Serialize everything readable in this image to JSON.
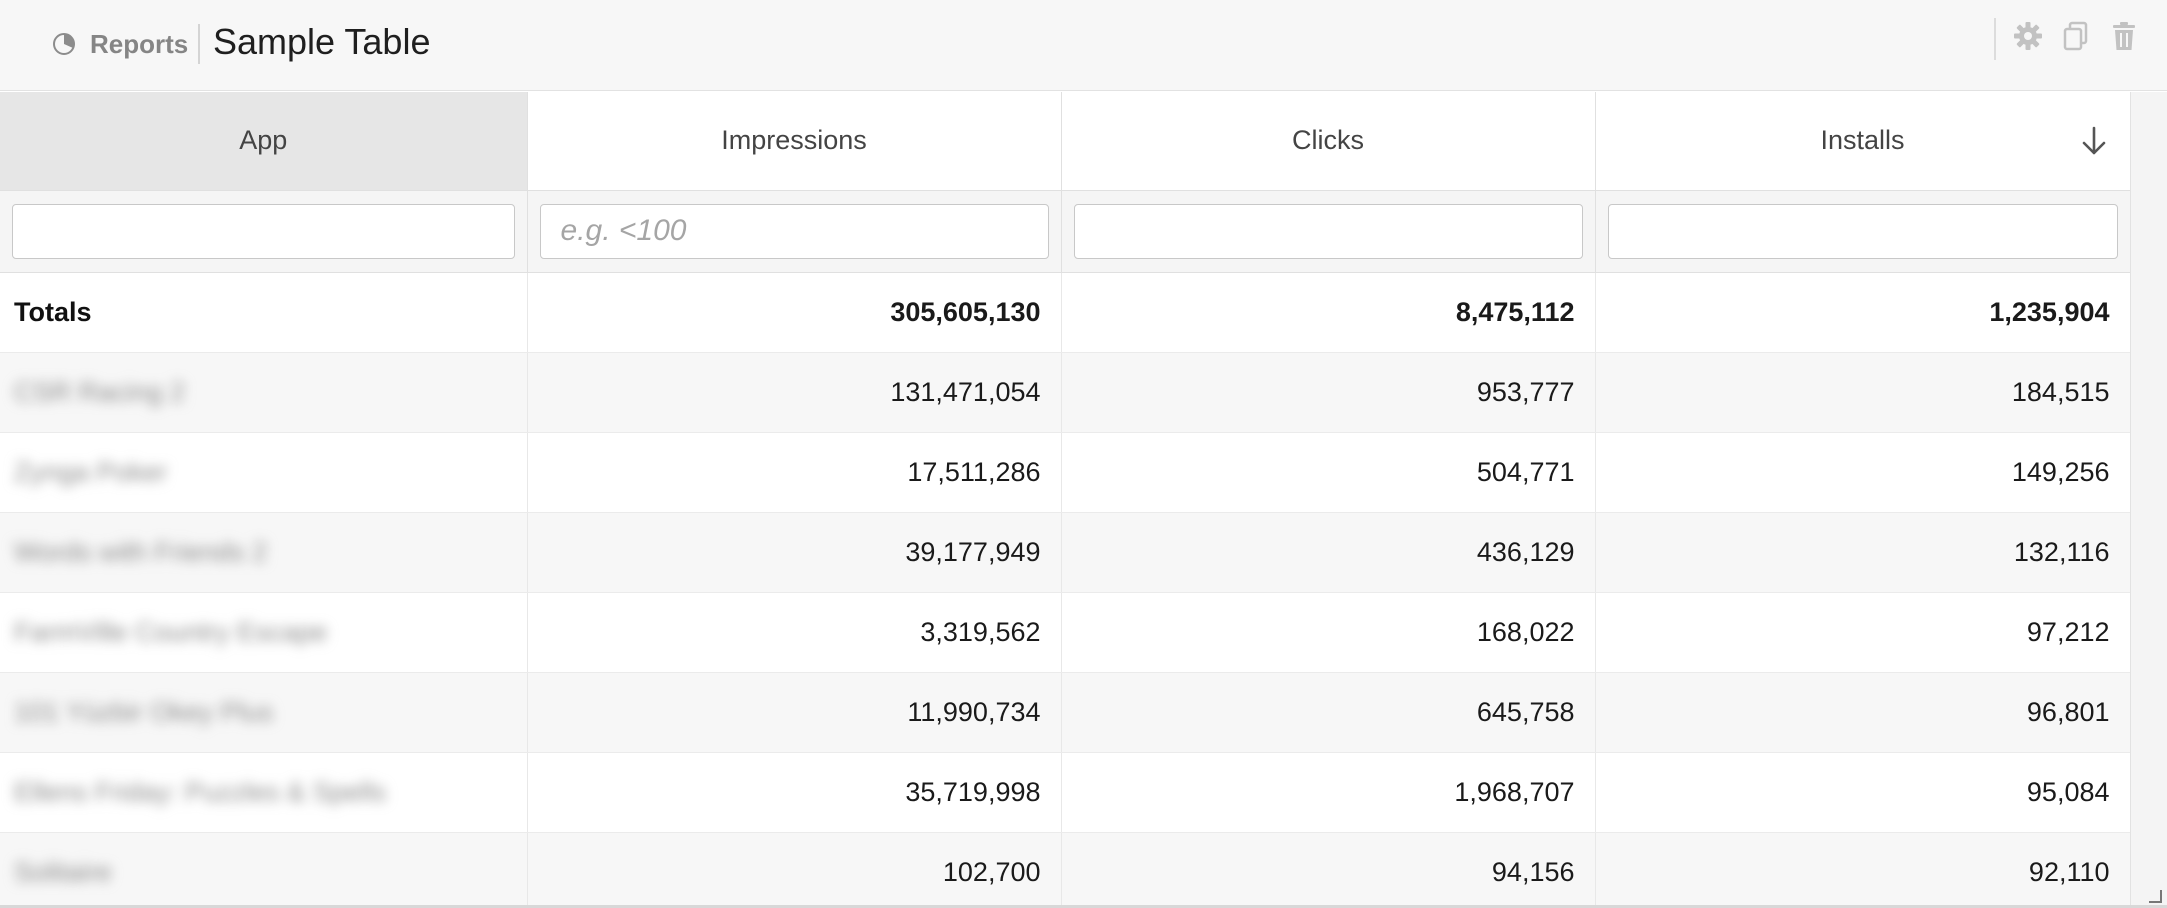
{
  "header": {
    "breadcrumb_label": "Reports",
    "title": "Sample Table",
    "icons": {
      "reports": "pie-chart-icon",
      "settings": "gear-icon",
      "copy": "copy-icon",
      "delete": "trash-icon"
    }
  },
  "table": {
    "columns": [
      {
        "label": "App",
        "filter_placeholder": ""
      },
      {
        "label": "Impressions",
        "filter_placeholder": "e.g. <100"
      },
      {
        "label": "Clicks",
        "filter_placeholder": ""
      },
      {
        "label": "Installs",
        "filter_placeholder": ""
      }
    ],
    "sort": {
      "column": "Installs",
      "direction": "desc",
      "icon": "arrow-down-icon"
    },
    "totals": {
      "label": "Totals",
      "impressions": "305,605,130",
      "clicks": "8,475,112",
      "installs": "1,235,904"
    },
    "rows": [
      {
        "app": "CSR Racing 2",
        "impressions": "131,471,054",
        "clicks": "953,777",
        "installs": "184,515"
      },
      {
        "app": "Zynga Poker",
        "impressions": "17,511,286",
        "clicks": "504,771",
        "installs": "149,256"
      },
      {
        "app": "Words with Friends 2",
        "impressions": "39,177,949",
        "clicks": "436,129",
        "installs": "132,116"
      },
      {
        "app": "FarmVille Country Escape",
        "impressions": "3,319,562",
        "clicks": "168,022",
        "installs": "97,212"
      },
      {
        "app": "101 Yüzbir Okey Plus",
        "impressions": "11,990,734",
        "clicks": "645,758",
        "installs": "96,801"
      },
      {
        "app": "Ellens Friday: Puzzles & Spells",
        "impressions": "35,719,998",
        "clicks": "1,968,707",
        "installs": "95,084"
      },
      {
        "app": "Solitaire",
        "impressions": "102,700",
        "clicks": "94,156",
        "installs": "92,110"
      }
    ]
  },
  "colors": {
    "header_bg": "#f7f7f7",
    "active_header_bg": "#e6e6e6",
    "row_alt_bg": "#f7f7f7"
  }
}
